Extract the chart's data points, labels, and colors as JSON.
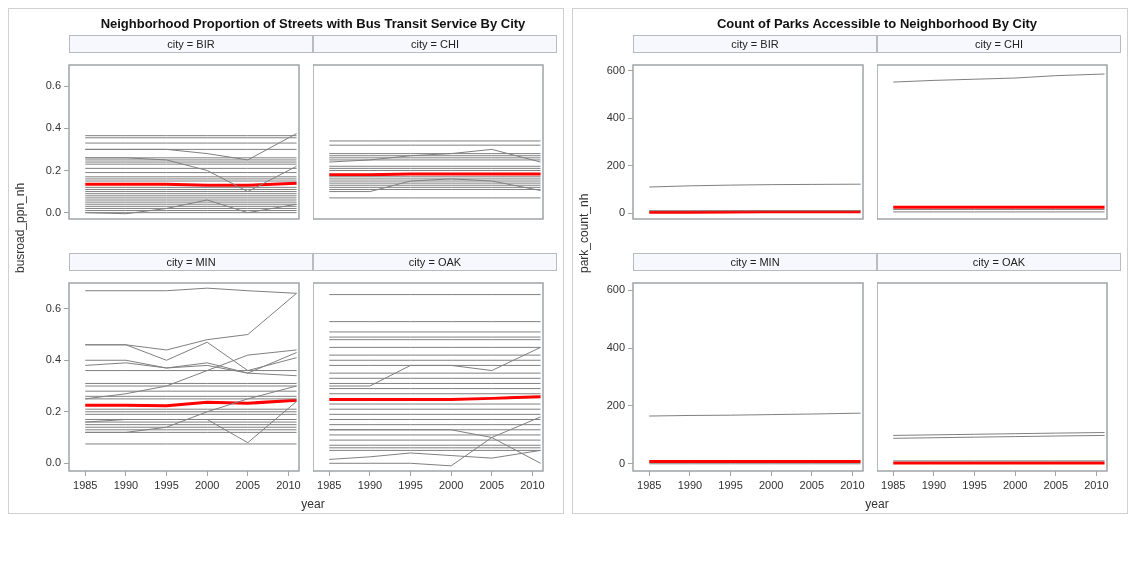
{
  "chart_data": [
    {
      "type": "line",
      "title": "Neighborhood Proportion of Streets with Bus Transit Service By City",
      "subtitle": "city = BIR",
      "ylabel": "busroad_ppn_nh",
      "x": [
        1985,
        1990,
        1995,
        2000,
        2005,
        2011
      ],
      "xlim": [
        1983,
        2011.3
      ],
      "xticks": [
        1985,
        1990,
        1995,
        2000,
        2005,
        2010
      ],
      "ylim": [
        -0.03,
        0.7
      ],
      "yticks": [
        {
          "value": 0,
          "label": "0.0"
        },
        0.2,
        0.4,
        0.6
      ],
      "tick_labels": "y",
      "grid": false,
      "legend": false,
      "marker": "none",
      "line_style": "solid",
      "series": [
        {
          "color": "#808080",
          "values": [
            0.365,
            0.365,
            0.365,
            0.365,
            0.365,
            0.365
          ]
        },
        {
          "color": "#808080",
          "values": [
            0.355,
            0.355,
            0.355,
            0.355,
            0.355,
            0.355
          ]
        },
        {
          "color": "#808080",
          "values": [
            0.33,
            0.33,
            0.33,
            0.33,
            0.33,
            0.33
          ]
        },
        {
          "color": "#808080",
          "values": [
            0.3,
            0.3,
            0.3,
            0.3,
            0.3,
            0.3
          ]
        },
        {
          "color": "#808080",
          "values": [
            0.26,
            0.26,
            0.26,
            0.26,
            0.26,
            0.26
          ]
        },
        {
          "color": "#808080",
          "values": [
            0.25,
            0.25,
            0.25,
            0.25,
            0.25,
            0.25
          ]
        },
        {
          "color": "#808080",
          "values": [
            0.24,
            0.24,
            0.24,
            0.24,
            0.24,
            0.24
          ]
        },
        {
          "color": "#808080",
          "values": [
            0.23,
            0.23,
            0.23,
            0.23,
            0.23,
            0.23
          ]
        },
        {
          "color": "#808080",
          "values": [
            0.21,
            0.21,
            0.21,
            0.21,
            0.21,
            0.21
          ]
        },
        {
          "color": "#808080",
          "values": [
            0.19,
            0.19,
            0.19,
            0.19,
            0.19,
            0.19
          ]
        },
        {
          "color": "#808080",
          "values": [
            0.17,
            0.17,
            0.17,
            0.17,
            0.17,
            0.17
          ]
        },
        {
          "color": "#808080",
          "values": [
            0.16,
            0.16,
            0.16,
            0.16,
            0.16,
            0.16
          ]
        },
        {
          "color": "#808080",
          "values": [
            0.15,
            0.15,
            0.15,
            0.15,
            0.15,
            0.15
          ]
        },
        {
          "color": "#808080",
          "values": [
            0.12,
            0.12,
            0.12,
            0.12,
            0.12,
            0.12
          ]
        },
        {
          "color": "#808080",
          "values": [
            0.11,
            0.11,
            0.11,
            0.11,
            0.11,
            0.11
          ]
        },
        {
          "color": "#808080",
          "values": [
            0.1,
            0.1,
            0.1,
            0.1,
            0.1,
            0.1
          ]
        },
        {
          "color": "#808080",
          "values": [
            0.09,
            0.09,
            0.09,
            0.09,
            0.09,
            0.09
          ]
        },
        {
          "color": "#808080",
          "values": [
            0.08,
            0.08,
            0.08,
            0.08,
            0.08,
            0.08
          ]
        },
        {
          "color": "#808080",
          "values": [
            0.07,
            0.07,
            0.07,
            0.07,
            0.07,
            0.07
          ]
        },
        {
          "color": "#808080",
          "values": [
            0.06,
            0.06,
            0.06,
            0.06,
            0.06,
            0.06
          ]
        },
        {
          "color": "#808080",
          "values": [
            0.05,
            0.05,
            0.05,
            0.05,
            0.05,
            0.05
          ]
        },
        {
          "color": "#808080",
          "values": [
            0.04,
            0.04,
            0.04,
            0.04,
            0.04,
            0.04
          ]
        },
        {
          "color": "#808080",
          "values": [
            0.03,
            0.03,
            0.03,
            0.03,
            0.03,
            0.03
          ]
        },
        {
          "color": "#808080",
          "values": [
            0.02,
            0.02,
            0.02,
            0.02,
            0.02,
            0.02
          ]
        },
        {
          "color": "#808080",
          "values": [
            0.01,
            0.01,
            0.01,
            0.01,
            0.01,
            0.01
          ]
        },
        {
          "color": "#808080",
          "values": [
            0.0,
            0.0,
            0.0,
            0.0,
            0.0,
            0.0
          ]
        },
        {
          "color": "#808080",
          "values": [
            0.3,
            0.3,
            0.3,
            0.28,
            0.25,
            0.375
          ]
        },
        {
          "color": "#808080",
          "values": [
            0.26,
            0.26,
            0.25,
            0.2,
            0.1,
            0.22
          ]
        },
        {
          "color": "#808080",
          "values": [
            0.0,
            -0.005,
            0.02,
            0.06,
            0.0,
            0.04
          ]
        },
        {
          "color": "#ff0000",
          "values": [
            0.135,
            0.135,
            0.135,
            0.13,
            0.13,
            0.14
          ]
        }
      ]
    },
    {
      "type": "line",
      "subtitle": "city = CHI",
      "x": [
        1985,
        1990,
        1995,
        2000,
        2005,
        2011
      ],
      "xlim": [
        1983,
        2011.3
      ],
      "xticks": [
        1985,
        1990,
        1995,
        2000,
        2005,
        2010
      ],
      "ylim": [
        -0.03,
        0.7
      ],
      "yticks": [
        0.0,
        0.2,
        0.4,
        0.6
      ],
      "tick_labels": false,
      "grid": false,
      "legend": false,
      "marker": "none",
      "line_style": "solid",
      "series": [
        {
          "color": "#808080",
          "values": [
            0.34,
            0.34,
            0.34,
            0.34,
            0.34,
            0.34
          ]
        },
        {
          "color": "#808080",
          "values": [
            0.32,
            0.32,
            0.32,
            0.32,
            0.32,
            0.32
          ]
        },
        {
          "color": "#808080",
          "values": [
            0.28,
            0.28,
            0.28,
            0.28,
            0.28,
            0.28
          ]
        },
        {
          "color": "#808080",
          "values": [
            0.27,
            0.27,
            0.27,
            0.27,
            0.27,
            0.27
          ]
        },
        {
          "color": "#808080",
          "values": [
            0.26,
            0.26,
            0.26,
            0.26,
            0.26,
            0.26
          ]
        },
        {
          "color": "#808080",
          "values": [
            0.25,
            0.25,
            0.25,
            0.25,
            0.25,
            0.25
          ]
        },
        {
          "color": "#808080",
          "values": [
            0.22,
            0.22,
            0.22,
            0.22,
            0.22,
            0.22
          ]
        },
        {
          "color": "#808080",
          "values": [
            0.21,
            0.21,
            0.21,
            0.21,
            0.21,
            0.21
          ]
        },
        {
          "color": "#808080",
          "values": [
            0.2,
            0.2,
            0.2,
            0.2,
            0.2,
            0.2
          ]
        },
        {
          "color": "#808080",
          "values": [
            0.17,
            0.17,
            0.17,
            0.17,
            0.17,
            0.17
          ]
        },
        {
          "color": "#808080",
          "values": [
            0.16,
            0.16,
            0.16,
            0.16,
            0.16,
            0.16
          ]
        },
        {
          "color": "#808080",
          "values": [
            0.15,
            0.15,
            0.15,
            0.15,
            0.15,
            0.15
          ]
        },
        {
          "color": "#808080",
          "values": [
            0.14,
            0.14,
            0.14,
            0.14,
            0.14,
            0.14
          ]
        },
        {
          "color": "#808080",
          "values": [
            0.13,
            0.13,
            0.13,
            0.13,
            0.13,
            0.13
          ]
        },
        {
          "color": "#808080",
          "values": [
            0.12,
            0.12,
            0.12,
            0.12,
            0.12,
            0.12
          ]
        },
        {
          "color": "#808080",
          "values": [
            0.11,
            0.11,
            0.11,
            0.11,
            0.11,
            0.11
          ]
        },
        {
          "color": "#808080",
          "values": [
            0.07,
            0.07,
            0.07,
            0.07,
            0.07,
            0.07
          ]
        },
        {
          "color": "#808080",
          "values": [
            0.24,
            0.25,
            0.27,
            0.28,
            0.3,
            0.24
          ]
        },
        {
          "color": "#808080",
          "values": [
            0.1,
            0.1,
            0.15,
            0.16,
            0.15,
            0.105
          ]
        },
        {
          "color": "#ff0000",
          "values": [
            0.18,
            0.18,
            0.183,
            0.183,
            0.183,
            0.183
          ]
        }
      ]
    },
    {
      "type": "line",
      "subtitle": "city = MIN",
      "xlabel": "year",
      "x": [
        1985,
        1990,
        1995,
        2000,
        2005,
        2011
      ],
      "xlim": [
        1983,
        2011.3
      ],
      "xticks": [
        1985,
        1990,
        1995,
        2000,
        2005,
        2010
      ],
      "ylim": [
        -0.03,
        0.7
      ],
      "yticks": [
        {
          "value": 0,
          "label": "0.0"
        },
        0.2,
        0.4,
        0.6
      ],
      "grid": false,
      "legend": false,
      "marker": "none",
      "line_style": "solid",
      "series": [
        {
          "color": "#808080",
          "values": [
            0.67,
            0.67,
            0.67,
            0.68,
            0.67,
            0.66
          ]
        },
        {
          "color": "#808080",
          "values": [
            0.36,
            0.36,
            0.36,
            0.36,
            0.36,
            0.36
          ]
        },
        {
          "color": "#808080",
          "values": [
            0.31,
            0.31,
            0.31,
            0.31,
            0.31,
            0.31
          ]
        },
        {
          "color": "#808080",
          "values": [
            0.3,
            0.3,
            0.3,
            0.3,
            0.3,
            0.3
          ]
        },
        {
          "color": "#808080",
          "values": [
            0.28,
            0.28,
            0.28,
            0.28,
            0.28,
            0.28
          ]
        },
        {
          "color": "#808080",
          "values": [
            0.26,
            0.26,
            0.26,
            0.26,
            0.26,
            0.26
          ]
        },
        {
          "color": "#808080",
          "values": [
            0.25,
            0.25,
            0.25,
            0.25,
            0.25,
            0.25
          ]
        },
        {
          "color": "#808080",
          "values": [
            0.21,
            0.21,
            0.21,
            0.21,
            0.21,
            0.21
          ]
        },
        {
          "color": "#808080",
          "values": [
            0.2,
            0.2,
            0.2,
            0.2,
            0.2,
            0.2
          ]
        },
        {
          "color": "#808080",
          "values": [
            0.19,
            0.19,
            0.19,
            0.19,
            0.19,
            0.19
          ]
        },
        {
          "color": "#808080",
          "values": [
            0.17,
            0.17,
            0.17,
            0.17,
            0.17,
            0.17
          ]
        },
        {
          "color": "#808080",
          "values": [
            0.16,
            0.16,
            0.16,
            0.16,
            0.16,
            0.16
          ]
        },
        {
          "color": "#808080",
          "values": [
            0.15,
            0.15,
            0.15,
            0.15,
            0.15,
            0.15
          ]
        },
        {
          "color": "#808080",
          "values": [
            0.14,
            0.14,
            0.14,
            0.14,
            0.14,
            0.14
          ]
        },
        {
          "color": "#808080",
          "values": [
            0.13,
            0.13,
            0.13,
            0.13,
            0.13,
            0.13
          ]
        },
        {
          "color": "#808080",
          "values": [
            0.12,
            0.12,
            0.12,
            0.12,
            0.12,
            0.12
          ]
        },
        {
          "color": "#808080",
          "values": [
            0.075,
            0.075,
            0.075,
            0.075,
            0.075,
            0.075
          ]
        },
        {
          "color": "#808080",
          "values": [
            0.46,
            0.46,
            0.44,
            0.48,
            0.5,
            0.66
          ]
        },
        {
          "color": "#808080",
          "values": [
            0.46,
            0.46,
            0.4,
            0.47,
            0.36,
            0.41
          ]
        },
        {
          "color": "#808080",
          "values": [
            0.4,
            0.4,
            0.37,
            0.38,
            0.35,
            0.43
          ]
        },
        {
          "color": "#808080",
          "values": [
            0.38,
            0.39,
            0.37,
            0.39,
            0.35,
            0.34
          ]
        },
        {
          "color": "#808080",
          "values": [
            0.25,
            0.27,
            0.3,
            0.36,
            0.42,
            0.44
          ]
        },
        {
          "color": "#808080",
          "values": [
            0.16,
            0.17,
            0.17,
            0.17,
            0.08,
            0.24
          ]
        },
        {
          "color": "#808080",
          "values": [
            0.12,
            0.12,
            0.14,
            0.2,
            0.25,
            0.3
          ]
        },
        {
          "color": "#ff0000",
          "values": [
            0.225,
            0.225,
            0.223,
            0.237,
            0.233,
            0.245
          ]
        }
      ]
    },
    {
      "type": "line",
      "subtitle": "city = OAK",
      "x": [
        1985,
        1990,
        1995,
        2000,
        2005,
        2011
      ],
      "xlim": [
        1983,
        2011.3
      ],
      "xticks": [
        1985,
        1990,
        1995,
        2000,
        2005,
        2010
      ],
      "ylim": [
        -0.03,
        0.7
      ],
      "yticks": [
        0.0,
        0.2,
        0.4,
        0.6
      ],
      "tick_labels": "x",
      "grid": false,
      "legend": false,
      "marker": "none",
      "line_style": "solid",
      "series": [
        {
          "color": "#808080",
          "values": [
            0.655,
            0.655,
            0.655,
            0.655,
            0.655,
            0.655
          ]
        },
        {
          "color": "#808080",
          "values": [
            0.55,
            0.55,
            0.55,
            0.55,
            0.55,
            0.55
          ]
        },
        {
          "color": "#808080",
          "values": [
            0.51,
            0.51,
            0.51,
            0.51,
            0.51,
            0.51
          ]
        },
        {
          "color": "#808080",
          "values": [
            0.49,
            0.49,
            0.49,
            0.49,
            0.49,
            0.49
          ]
        },
        {
          "color": "#808080",
          "values": [
            0.48,
            0.48,
            0.48,
            0.48,
            0.48,
            0.48
          ]
        },
        {
          "color": "#808080",
          "values": [
            0.45,
            0.45,
            0.45,
            0.45,
            0.45,
            0.45
          ]
        },
        {
          "color": "#808080",
          "values": [
            0.42,
            0.42,
            0.42,
            0.42,
            0.42,
            0.42
          ]
        },
        {
          "color": "#808080",
          "values": [
            0.4,
            0.4,
            0.4,
            0.4,
            0.4,
            0.4
          ]
        },
        {
          "color": "#808080",
          "values": [
            0.38,
            0.38,
            0.38,
            0.38,
            0.38,
            0.38
          ]
        },
        {
          "color": "#808080",
          "values": [
            0.35,
            0.35,
            0.35,
            0.35,
            0.35,
            0.35
          ]
        },
        {
          "color": "#808080",
          "values": [
            0.33,
            0.33,
            0.33,
            0.33,
            0.33,
            0.33
          ]
        },
        {
          "color": "#808080",
          "values": [
            0.31,
            0.31,
            0.31,
            0.31,
            0.31,
            0.31
          ]
        },
        {
          "color": "#808080",
          "values": [
            0.29,
            0.29,
            0.29,
            0.29,
            0.29,
            0.29
          ]
        },
        {
          "color": "#808080",
          "values": [
            0.27,
            0.27,
            0.27,
            0.27,
            0.27,
            0.27
          ]
        },
        {
          "color": "#808080",
          "values": [
            0.23,
            0.23,
            0.23,
            0.23,
            0.23,
            0.23
          ]
        },
        {
          "color": "#808080",
          "values": [
            0.21,
            0.21,
            0.21,
            0.21,
            0.21,
            0.21
          ]
        },
        {
          "color": "#808080",
          "values": [
            0.19,
            0.19,
            0.19,
            0.19,
            0.19,
            0.19
          ]
        },
        {
          "color": "#808080",
          "values": [
            0.17,
            0.17,
            0.17,
            0.17,
            0.17,
            0.17
          ]
        },
        {
          "color": "#808080",
          "values": [
            0.15,
            0.15,
            0.15,
            0.15,
            0.15,
            0.15
          ]
        },
        {
          "color": "#808080",
          "values": [
            0.13,
            0.13,
            0.13,
            0.13,
            0.13,
            0.13
          ]
        },
        {
          "color": "#808080",
          "values": [
            0.11,
            0.11,
            0.11,
            0.11,
            0.11,
            0.11
          ]
        },
        {
          "color": "#808080",
          "values": [
            0.09,
            0.09,
            0.09,
            0.09,
            0.09,
            0.09
          ]
        },
        {
          "color": "#808080",
          "values": [
            0.07,
            0.07,
            0.07,
            0.07,
            0.07,
            0.07
          ]
        },
        {
          "color": "#808080",
          "values": [
            0.06,
            0.06,
            0.06,
            0.06,
            0.06,
            0.06
          ]
        },
        {
          "color": "#808080",
          "values": [
            0.05,
            0.05,
            0.05,
            0.05,
            0.05,
            0.05
          ]
        },
        {
          "color": "#808080",
          "values": [
            0.015,
            0.025,
            0.04,
            0.03,
            0.02,
            0.05
          ]
        },
        {
          "color": "#808080",
          "values": [
            0.0,
            0.0,
            0.0,
            -0.01,
            0.1,
            0.18
          ]
        },
        {
          "color": "#808080",
          "values": [
            0.3,
            0.3,
            0.38,
            0.38,
            0.36,
            0.45
          ]
        },
        {
          "color": "#808080",
          "values": [
            0.13,
            0.13,
            0.13,
            0.13,
            0.1,
            0.0
          ]
        },
        {
          "color": "#ff0000",
          "values": [
            0.248,
            0.248,
            0.248,
            0.248,
            0.252,
            0.258
          ]
        }
      ]
    },
    {
      "type": "line",
      "title": "Count of Parks Accessible to Neighborhood By City",
      "subtitle": "city = BIR",
      "ylabel": "park_count_nh",
      "x": [
        1985,
        1990,
        1995,
        2000,
        2005,
        2011
      ],
      "xlim": [
        1983,
        2011.3
      ],
      "xticks": [
        1985,
        1990,
        1995,
        2000,
        2005,
        2010
      ],
      "ylim": [
        -25,
        625
      ],
      "yticks": [
        0,
        200,
        400,
        600
      ],
      "tick_labels": "y",
      "grid": false,
      "legend": false,
      "marker": "none",
      "line_style": "solid",
      "series": [
        {
          "color": "#808080",
          "values": [
            110,
            115,
            118,
            120,
            121,
            122
          ]
        },
        {
          "color": "#808080",
          "values": [
            10,
            10,
            10,
            10,
            10,
            10
          ]
        },
        {
          "color": "#ff0000",
          "values": [
            3,
            4,
            5,
            6,
            6,
            6
          ]
        }
      ]
    },
    {
      "type": "line",
      "subtitle": "city = CHI",
      "x": [
        1985,
        1990,
        1995,
        2000,
        2005,
        2011
      ],
      "xlim": [
        1983,
        2011.3
      ],
      "xticks": [
        1985,
        1990,
        1995,
        2000,
        2005,
        2010
      ],
      "ylim": [
        -25,
        625
      ],
      "yticks": [
        0,
        200,
        400,
        600
      ],
      "tick_labels": false,
      "grid": false,
      "legend": false,
      "marker": "none",
      "line_style": "solid",
      "series": [
        {
          "color": "#808080",
          "values": [
            553,
            560,
            565,
            570,
            580,
            587
          ]
        },
        {
          "color": "#808080",
          "values": [
            15,
            15,
            15,
            15,
            15,
            15
          ]
        },
        {
          "color": "#808080",
          "values": [
            5,
            5,
            5,
            5,
            5,
            5
          ]
        },
        {
          "color": "#ff0000",
          "values": [
            25,
            25,
            25,
            25,
            25,
            25
          ]
        }
      ]
    },
    {
      "type": "line",
      "subtitle": "city = MIN",
      "xlabel": "year",
      "x": [
        1985,
        1990,
        1995,
        2000,
        2005,
        2011
      ],
      "xlim": [
        1983,
        2011.3
      ],
      "xticks": [
        1985,
        1990,
        1995,
        2000,
        2005,
        2010
      ],
      "ylim": [
        -25,
        625
      ],
      "yticks": [
        0,
        200,
        400,
        600
      ],
      "grid": false,
      "legend": false,
      "marker": "none",
      "line_style": "solid",
      "series": [
        {
          "color": "#808080",
          "values": [
            165,
            167,
            168,
            170,
            172,
            175
          ]
        },
        {
          "color": "#808080",
          "values": [
            0,
            0,
            0,
            0,
            0,
            0
          ]
        },
        {
          "color": "#ff0000",
          "values": [
            8,
            8,
            8,
            8,
            8,
            8
          ]
        }
      ]
    },
    {
      "type": "line",
      "subtitle": "city = OAK",
      "x": [
        1985,
        1990,
        1995,
        2000,
        2005,
        2011
      ],
      "xlim": [
        1983,
        2011.3
      ],
      "xticks": [
        1985,
        1990,
        1995,
        2000,
        2005,
        2010
      ],
      "ylim": [
        -25,
        625
      ],
      "yticks": [
        0,
        200,
        400,
        600
      ],
      "tick_labels": "x",
      "grid": false,
      "legend": false,
      "marker": "none",
      "line_style": "solid",
      "series": [
        {
          "color": "#808080",
          "values": [
            98,
            100,
            102,
            104,
            106,
            108
          ]
        },
        {
          "color": "#808080",
          "values": [
            88,
            90,
            92,
            94,
            96,
            98
          ]
        },
        {
          "color": "#808080",
          "values": [
            10,
            10,
            10,
            10,
            10,
            10
          ]
        },
        {
          "color": "#ff0000",
          "values": [
            3,
            3,
            3,
            3,
            3,
            3
          ]
        }
      ]
    }
  ]
}
